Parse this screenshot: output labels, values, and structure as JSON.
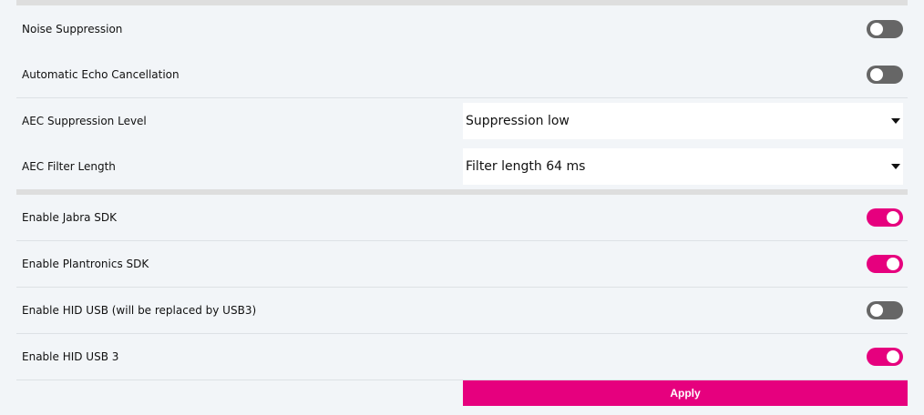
{
  "rows": [
    {
      "label": "Noise Suppression",
      "on": false
    },
    {
      "label": "Automatic Echo Cancellation",
      "on": false
    }
  ],
  "selects": [
    {
      "label": "AEC Suppression Level",
      "value": "Suppression low"
    },
    {
      "label": "AEC Filter Length",
      "value": "Filter length 64 ms"
    }
  ],
  "sdk_rows": [
    {
      "label": "Enable Jabra SDK",
      "on": true
    },
    {
      "label": "Enable Plantronics SDK",
      "on": true
    },
    {
      "label": "Enable HID USB (will be replaced by USB3)",
      "on": false
    },
    {
      "label": "Enable HID USB 3",
      "on": true
    }
  ],
  "apply_label": "Apply",
  "colors": {
    "accent": "#e6007e",
    "toggle_off": "#666666",
    "background": "#f2f5f8"
  }
}
